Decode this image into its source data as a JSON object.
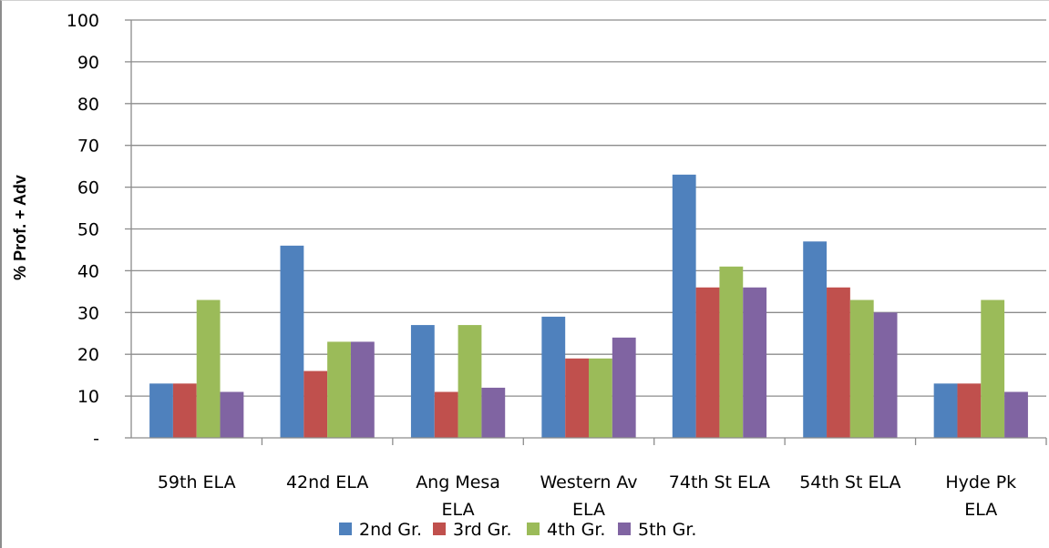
{
  "chart_data": {
    "type": "bar",
    "title": "",
    "xlabel": "",
    "ylabel": "% Prof. + Adv",
    "ylim": [
      0,
      100
    ],
    "yticks": [
      {
        "value": 0,
        "label": "-"
      },
      {
        "value": 10,
        "label": "10"
      },
      {
        "value": 20,
        "label": "20"
      },
      {
        "value": 30,
        "label": "30"
      },
      {
        "value": 40,
        "label": "40"
      },
      {
        "value": 50,
        "label": "50"
      },
      {
        "value": 60,
        "label": "60"
      },
      {
        "value": 70,
        "label": "70"
      },
      {
        "value": 80,
        "label": "80"
      },
      {
        "value": 90,
        "label": "90"
      },
      {
        "value": 100,
        "label": "100"
      }
    ],
    "grid": "horizontal",
    "legend_position": "bottom",
    "categories": [
      [
        "59th ELA"
      ],
      [
        "42nd ELA"
      ],
      [
        "Ang Mesa",
        "ELA"
      ],
      [
        "Western Av",
        "ELA"
      ],
      [
        "74th St  ELA"
      ],
      [
        "54th St  ELA"
      ],
      [
        "Hyde Pk",
        "ELA"
      ]
    ],
    "series": [
      {
        "name": "2nd Gr.",
        "color": "#4f81bd",
        "values": [
          13,
          46,
          27,
          29,
          63,
          47,
          13
        ]
      },
      {
        "name": "3rd Gr.",
        "color": "#c0504d",
        "values": [
          13,
          16,
          11,
          19,
          36,
          36,
          13
        ]
      },
      {
        "name": "4th Gr.",
        "color": "#9bbb59",
        "values": [
          33,
          23,
          27,
          19,
          41,
          33,
          33
        ]
      },
      {
        "name": "5th Gr.",
        "color": "#8064a2",
        "values": [
          11,
          23,
          12,
          24,
          36,
          30,
          11
        ]
      }
    ]
  }
}
